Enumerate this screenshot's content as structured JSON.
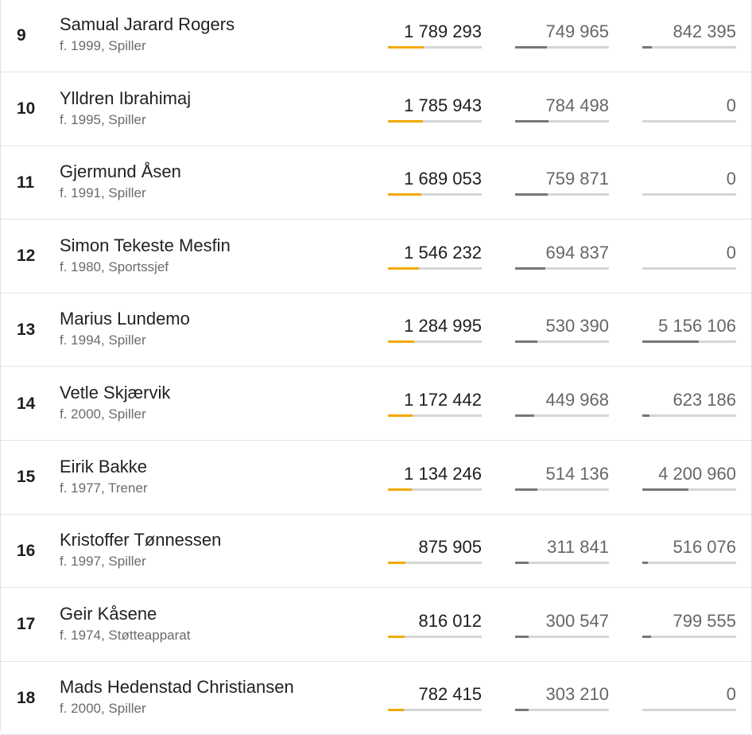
{
  "colors": {
    "accent_bar": "#f2a900",
    "secondary_bar": "#777777",
    "track": "#d6d6d6"
  },
  "rows": [
    {
      "rank": "9",
      "name": "Samual Jarard Rogers",
      "meta": "f. 1999, Spiller",
      "v1": "1 789 293",
      "p1": 0.38,
      "v2": "749 965",
      "p2": 0.34,
      "v3": "842 395",
      "p3": 0.1
    },
    {
      "rank": "10",
      "name": "Ylldren Ibrahimaj",
      "meta": "f. 1995, Spiller",
      "v1": "1 785 943",
      "p1": 0.37,
      "v2": "784 498",
      "p2": 0.36,
      "v3": "0",
      "p3": 0.0
    },
    {
      "rank": "11",
      "name": "Gjermund Åsen",
      "meta": "f. 1991, Spiller",
      "v1": "1 689 053",
      "p1": 0.36,
      "v2": "759 871",
      "p2": 0.35,
      "v3": "0",
      "p3": 0.0
    },
    {
      "rank": "12",
      "name": "Simon Tekeste Mesfin",
      "meta": "f. 1980, Sportssjef",
      "v1": "1 546 232",
      "p1": 0.33,
      "v2": "694 837",
      "p2": 0.32,
      "v3": "0",
      "p3": 0.0
    },
    {
      "rank": "13",
      "name": "Marius Lundemo",
      "meta": "f. 1994, Spiller",
      "v1": "1 284 995",
      "p1": 0.28,
      "v2": "530 390",
      "p2": 0.24,
      "v3": "5 156 106",
      "p3": 0.6
    },
    {
      "rank": "14",
      "name": "Vetle Skjærvik",
      "meta": "f. 2000, Spiller",
      "v1": "1 172 442",
      "p1": 0.26,
      "v2": "449 968",
      "p2": 0.2,
      "v3": "623 186",
      "p3": 0.08
    },
    {
      "rank": "15",
      "name": "Eirik Bakke",
      "meta": "f. 1977, Trener",
      "v1": "1 134 246",
      "p1": 0.25,
      "v2": "514 136",
      "p2": 0.24,
      "v3": "4 200 960",
      "p3": 0.49
    },
    {
      "rank": "16",
      "name": "Kristoffer Tønnessen",
      "meta": "f. 1997, Spiller",
      "v1": "875 905",
      "p1": 0.19,
      "v2": "311 841",
      "p2": 0.14,
      "v3": "516 076",
      "p3": 0.06
    },
    {
      "rank": "17",
      "name": "Geir Kåsene",
      "meta": "f. 1974, Støtteapparat",
      "v1": "816 012",
      "p1": 0.18,
      "v2": "300 547",
      "p2": 0.14,
      "v3": "799 555",
      "p3": 0.09
    },
    {
      "rank": "18",
      "name": "Mads Hedenstad Christiansen",
      "meta": "f. 2000, Spiller",
      "v1": "782 415",
      "p1": 0.17,
      "v2": "303 210",
      "p2": 0.14,
      "v3": "0",
      "p3": 0.0
    }
  ]
}
